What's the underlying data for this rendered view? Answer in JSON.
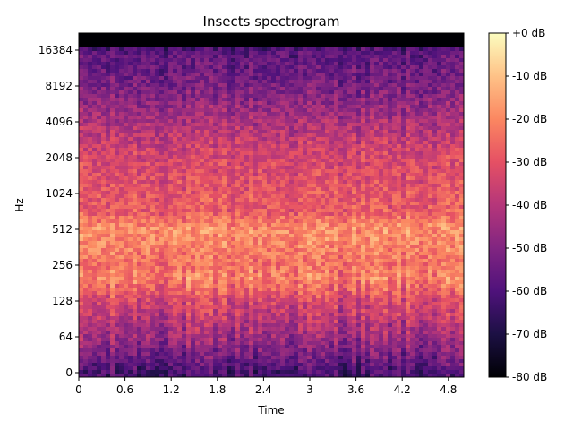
{
  "chart_data": {
    "type": "heatmap",
    "title": "Insects spectrogram",
    "xlabel": "Time",
    "ylabel": "Hz",
    "xlim": [
      0,
      5.0
    ],
    "x_ticks": [
      0,
      0.6,
      1.2,
      1.8,
      2.4,
      3.0,
      3.6,
      4.2,
      4.8
    ],
    "x_tick_labels": [
      "0",
      "0.6",
      "1.2",
      "1.8",
      "2.4",
      "3",
      "3.6",
      "4.2",
      "4.8"
    ],
    "y_scale": "log",
    "y_ticks": [
      0,
      64,
      128,
      256,
      512,
      1024,
      2048,
      4096,
      8192,
      16384
    ],
    "y_tick_labels": [
      "0",
      "64",
      "128",
      "256",
      "512",
      "1024",
      "2048",
      "4096",
      "8192",
      "16384"
    ],
    "colormap": "magma",
    "colorbar": {
      "range_db": [
        -80,
        0
      ],
      "ticks": [
        0,
        -10,
        -20,
        -30,
        -40,
        -50,
        -60,
        -70,
        -80
      ],
      "tick_labels": [
        "+0 dB",
        "-10 dB",
        "-20 dB",
        "-30 dB",
        "-40 dB",
        "-50 dB",
        "-60 dB",
        "-70 dB",
        "-80 dB"
      ]
    },
    "intensity_profile_db": [
      {
        "hz": 0,
        "db": -62
      },
      {
        "hz": 32,
        "db": -52
      },
      {
        "hz": 64,
        "db": -45
      },
      {
        "hz": 128,
        "db": -33
      },
      {
        "hz": 200,
        "db": -21
      },
      {
        "hz": 256,
        "db": -24
      },
      {
        "hz": 512,
        "db": -18
      },
      {
        "hz": 700,
        "db": -28
      },
      {
        "hz": 1024,
        "db": -30
      },
      {
        "hz": 2048,
        "db": -33
      },
      {
        "hz": 4096,
        "db": -42
      },
      {
        "hz": 8192,
        "db": -52
      },
      {
        "hz": 16384,
        "db": -58
      },
      {
        "hz": 19000,
        "db": -80
      }
    ]
  }
}
